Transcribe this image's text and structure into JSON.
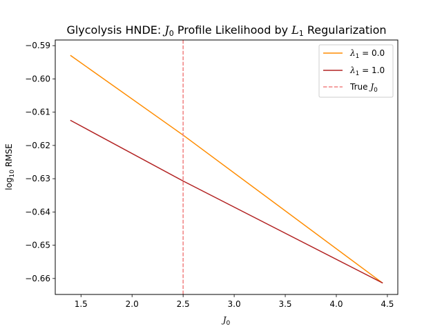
{
  "chart_data": {
    "type": "line",
    "title": {
      "prefix": "Glycolysis HNDE: ",
      "sym1": "J",
      "sub1": "0",
      "middle": " Profile Likelihood by ",
      "sym2": "L",
      "sub2": "1",
      "suffix": " Regularization"
    },
    "xlabel": {
      "sym": "J",
      "sub": "0"
    },
    "ylabel": {
      "base": "log",
      "sub": "10",
      "rest": " RMSE"
    },
    "xlim": [
      1.248,
      4.602
    ],
    "ylim": [
      -0.6648,
      -0.5883
    ],
    "xticks": [
      1.5,
      2.0,
      2.5,
      3.0,
      3.5,
      4.0,
      4.5
    ],
    "xtick_labels": [
      "1.5",
      "2.0",
      "2.5",
      "3.0",
      "3.5",
      "4.0",
      "4.5"
    ],
    "yticks": [
      -0.59,
      -0.6,
      -0.61,
      -0.62,
      -0.63,
      -0.64,
      -0.65,
      -0.66
    ],
    "ytick_labels": [
      "−0.59",
      "−0.60",
      "−0.61",
      "−0.62",
      "−0.63",
      "−0.64",
      "−0.65",
      "−0.66"
    ],
    "grid": false,
    "legend_position": "top-right",
    "series": [
      {
        "name": "λ1 = 0.0",
        "legend": {
          "sym": "λ",
          "sub": "1",
          "rest": " = 0.0"
        },
        "color": "#ff8c00",
        "dash": false,
        "x": [
          1.4,
          2.5,
          4.45
        ],
        "y": [
          -0.593,
          -0.6169,
          -0.6613
        ]
      },
      {
        "name": "λ1 = 1.0",
        "legend": {
          "sym": "λ",
          "sub": "1",
          "rest": " = 1.0"
        },
        "color": "#b22222",
        "dash": false,
        "x": [
          1.4,
          2.5,
          4.45
        ],
        "y": [
          -0.6125,
          -0.6307,
          -0.6613
        ]
      }
    ],
    "reference_line": {
      "name": "True J0",
      "legend": {
        "text": "True ",
        "sym": "J",
        "sub": "0"
      },
      "orientation": "vertical",
      "x": 2.5,
      "color": "#f08080",
      "dash": true
    }
  }
}
